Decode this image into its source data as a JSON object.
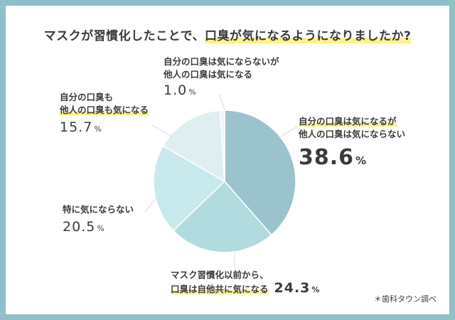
{
  "title": {
    "before": "マスクが習慣化したことで、",
    "highlight": "口臭が気になるようになりましたか?"
  },
  "chart_data": {
    "type": "pie",
    "start": "top",
    "direction": "clockwise",
    "slices": [
      {
        "label_lines": [
          "自分の口臭は気になるが",
          "他人の口臭は気にならない"
        ],
        "value": 38.6,
        "display": "38.6",
        "unit": "%",
        "color": "#9bc3cd"
      },
      {
        "label_lines": [
          "マスク習慣化以前から、",
          "口臭は自他共に気になる"
        ],
        "value": 24.3,
        "display": "24.3",
        "unit": "%",
        "color": "#b2dbe0"
      },
      {
        "label_lines": [
          "特に気にならない"
        ],
        "value": 20.5,
        "display": "20.5",
        "unit": "%",
        "color": "#c8e9eb"
      },
      {
        "label_lines": [
          "自分の口臭も",
          "他人の口臭も気になる"
        ],
        "value": 15.7,
        "display": "15.7",
        "unit": "%",
        "color": "#dfeff1"
      },
      {
        "label_lines": [
          "自分の口臭は気にならないが",
          "他人の口臭は気になる"
        ],
        "value": 1.0,
        "display": "1.0",
        "unit": "%",
        "color": "#eef6f7"
      }
    ]
  },
  "source": "＊歯科タウン調べ"
}
